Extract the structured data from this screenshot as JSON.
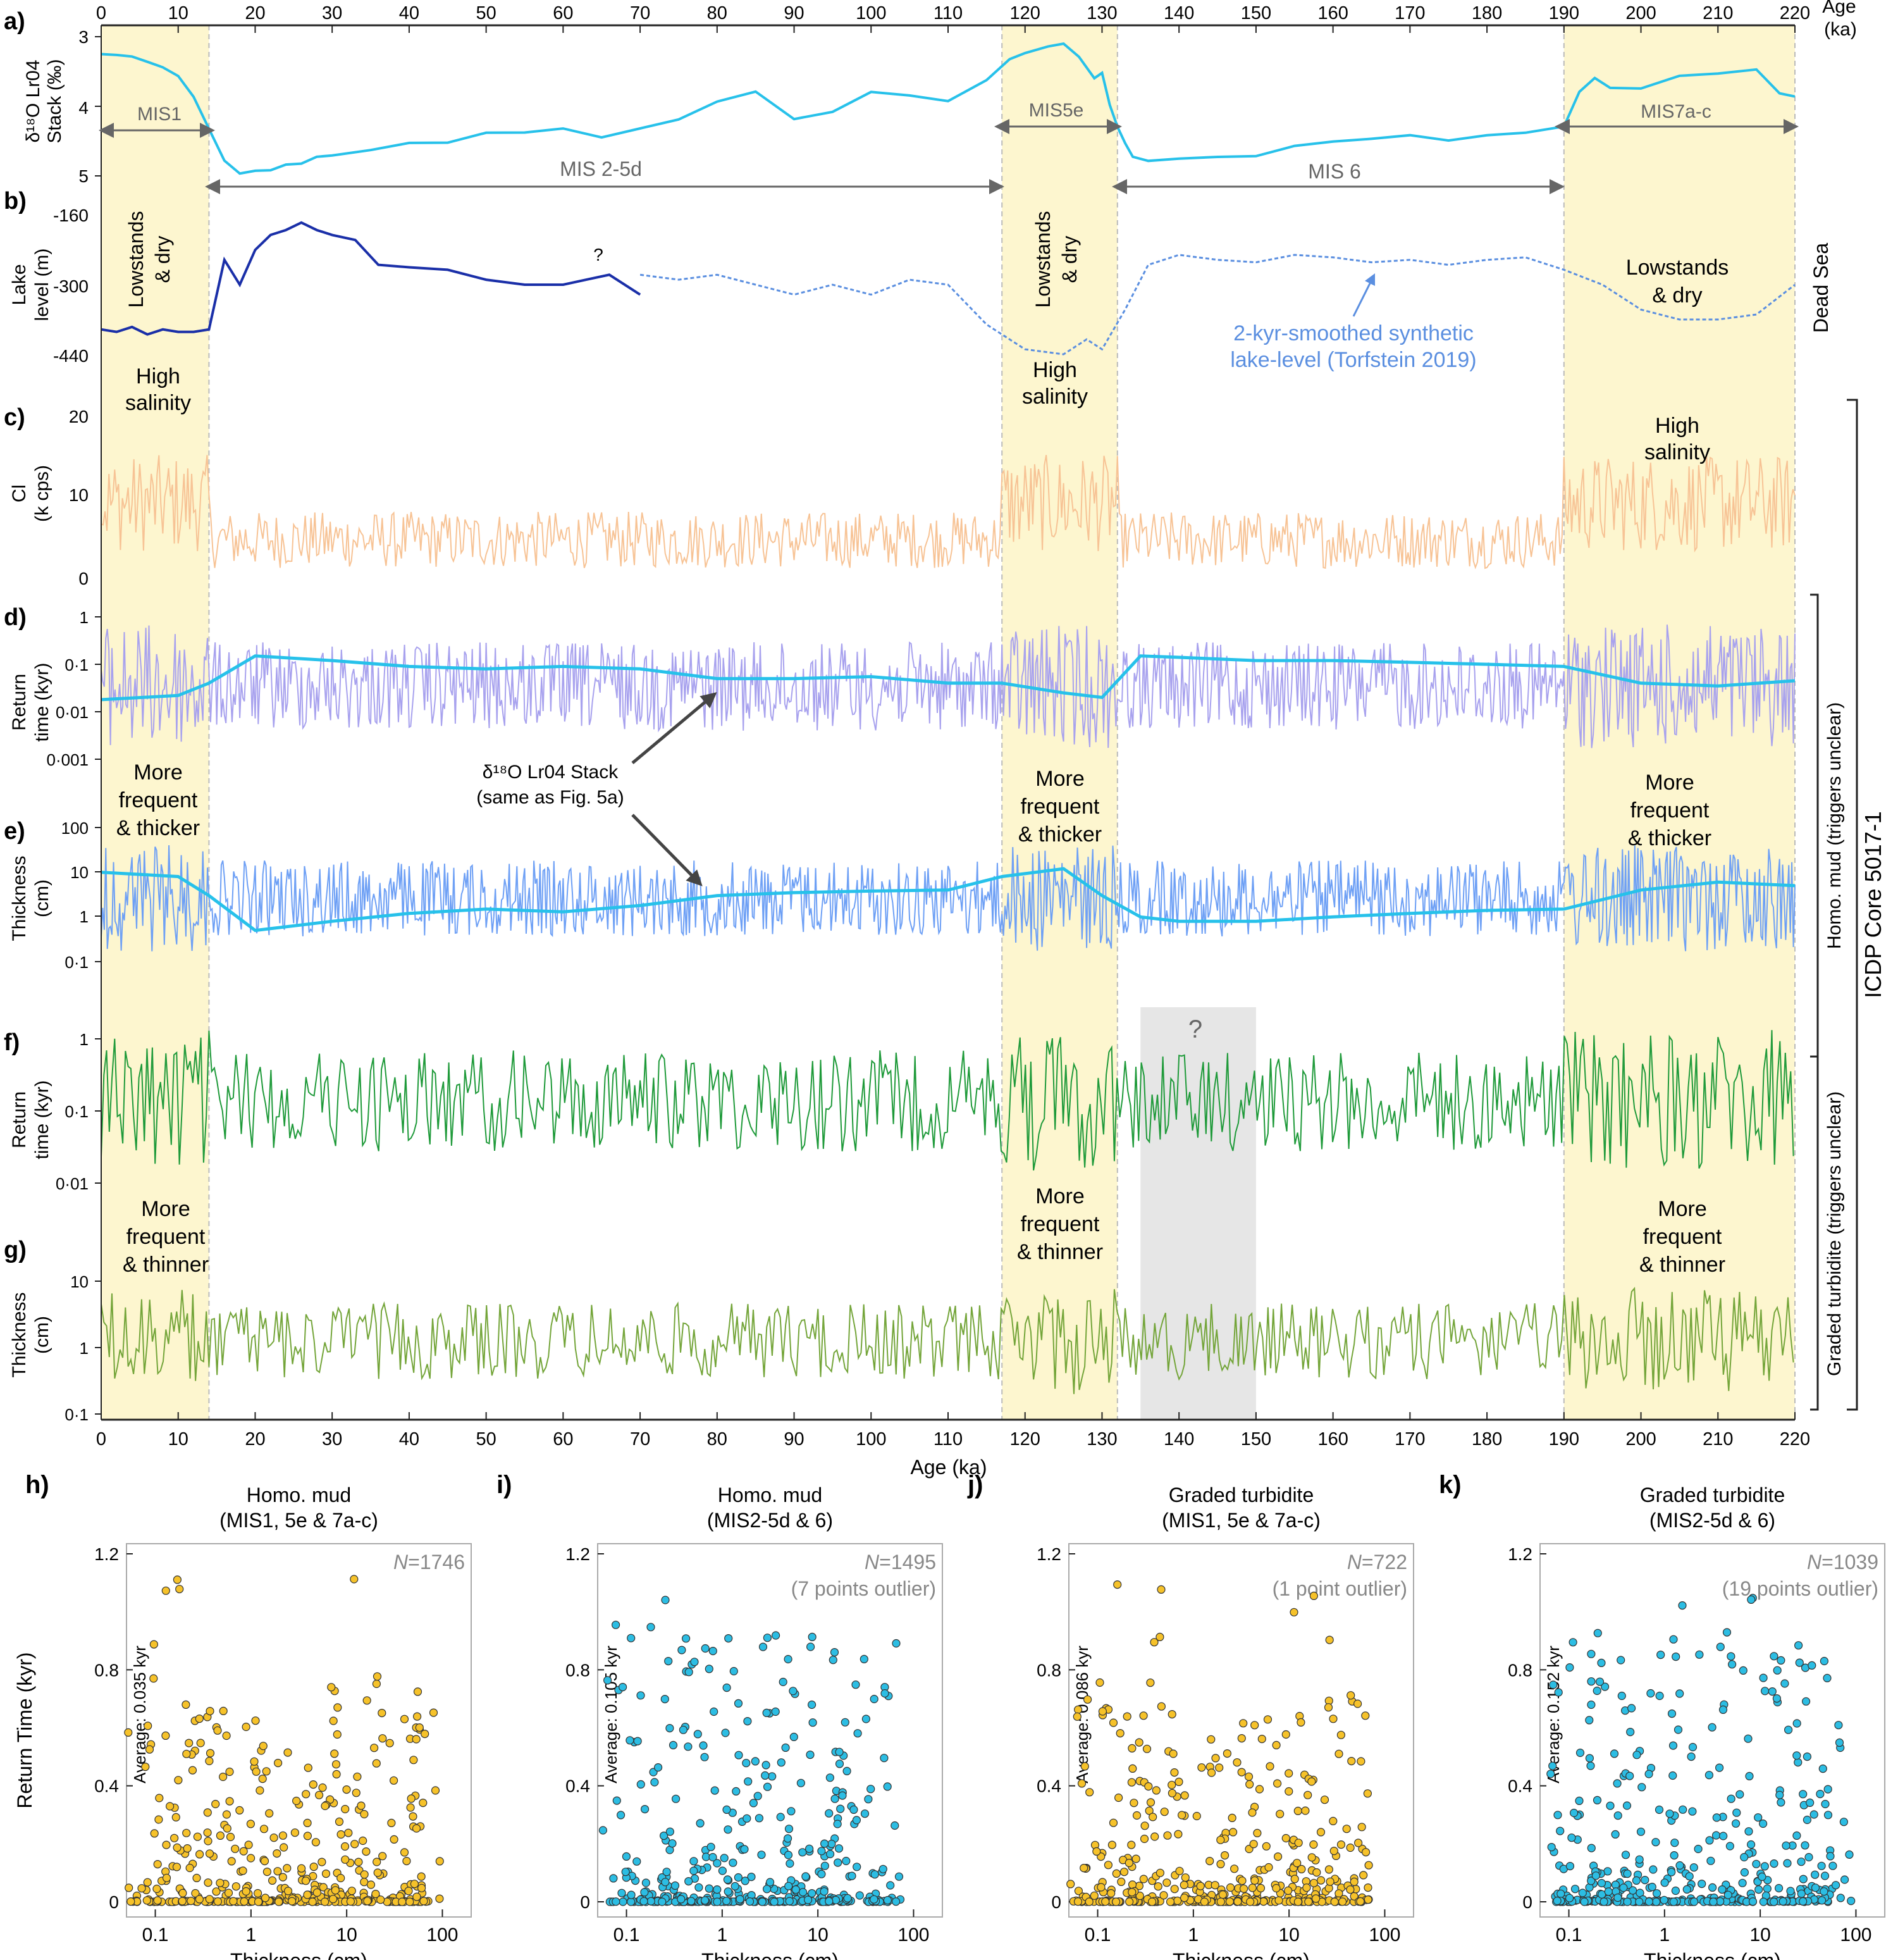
{
  "colors": {
    "mis_band": "#fdf6cf",
    "gray_band": "#e6e6e6",
    "d18o": "#27c1ea",
    "lake_measured": "#1a2fa8",
    "lake_synthetic": "#5b8fe0",
    "cl": "#f7c395",
    "mud_return": "#a8a2ee",
    "mud_thickness": "#6ea0f5",
    "turb_return": "#1f9a3a",
    "turb_thickness": "#74a53a",
    "scatter_warm": "#f6c22a",
    "scatter_cold": "#2cbde3",
    "label_gray": "#666666"
  },
  "age_axis": {
    "top_label": "Age",
    "top_unit": "(ka)",
    "bottom_label": "Age (ka)",
    "ticks": [
      "0",
      "10",
      "20",
      "30",
      "40",
      "50",
      "60",
      "70",
      "80",
      "90",
      "100",
      "110",
      "120",
      "130",
      "140",
      "150",
      "160",
      "170",
      "180",
      "190",
      "200",
      "210",
      "220"
    ]
  },
  "mis_bands_ka": [
    [
      0,
      14
    ],
    [
      117,
      132
    ],
    [
      190,
      220
    ]
  ],
  "gray_band_ka": [
    135,
    150
  ],
  "panels": {
    "a": {
      "letter": "a)",
      "ylabel1": "δ¹⁸O Lr04",
      "ylabel2": "Stack (‰)",
      "ticks": [
        "3",
        "4",
        "5"
      ],
      "mis1": "MIS1",
      "mis25d": "MIS 2-5d",
      "mis5e": "MIS5e",
      "mis6": "MIS 6",
      "mis7ac": "MIS7a-c"
    },
    "b": {
      "letter": "b)",
      "ylabel1": "Lake",
      "ylabel2": "level (m)",
      "ticks": [
        "-160",
        "-300",
        "-440"
      ],
      "lowstands_1": "Lowstands",
      "lowstands_2": "& dry",
      "question": "?",
      "synthetic_1": "2-kyr-smoothed synthetic",
      "synthetic_2": "lake-level (Torfstein 2019)",
      "high_1": "High",
      "high_2": "salinity",
      "dead_sea": "Dead Sea"
    },
    "c": {
      "letter": "c)",
      "ylabel1": "Cl",
      "ylabel2": "(k cps)",
      "ticks": [
        "20",
        "10",
        "0"
      ],
      "high_1": "High",
      "high_2": "salinity"
    },
    "d": {
      "letter": "d)",
      "ylabel1": "Return",
      "ylabel2": "time (kyr)",
      "ticks": [
        "1",
        "0·1",
        "0·01",
        "0·001"
      ],
      "more_1": "More",
      "more_2": "frequent",
      "more_3": "& thicker",
      "stack_1": "δ¹⁸O Lr04 Stack",
      "stack_2": "(same as Fig. 5a)"
    },
    "e": {
      "letter": "e)",
      "ylabel1": "Thickness",
      "ylabel2": "(cm)",
      "ticks": [
        "100",
        "10",
        "1",
        "0·1"
      ]
    },
    "f": {
      "letter": "f)",
      "ylabel1": "Return",
      "ylabel2": "time (kyr)",
      "ticks": [
        "1",
        "0·1",
        "0·01"
      ],
      "question": "?",
      "more_1": "More",
      "more_2": "frequent",
      "more_3": "& thinner"
    },
    "g": {
      "letter": "g)",
      "ylabel1": "Thickness",
      "ylabel2": "(cm)",
      "ticks": [
        "10",
        "1",
        "0·1"
      ]
    }
  },
  "side_labels": {
    "homo_mud": "Homo. mud (triggers unclear)",
    "graded_turbidite": "Graded turbidite (triggers unclear)",
    "core": "ICDP Core 5017-1"
  },
  "scatter_panels": [
    {
      "letter": "h)",
      "title1": "Homo. mud",
      "title2": "(MIS1, 5e & 7a-c)",
      "n_label": "N",
      "n_value": "=1746",
      "outlier": "",
      "average": "Average: 0.035 kyr",
      "color_key": "scatter_warm"
    },
    {
      "letter": "i)",
      "title1": "Homo. mud",
      "title2": "(MIS2-5d & 6)",
      "n_label": "N",
      "n_value": "=1495",
      "outlier": "(7 points outlier)",
      "average": "Average: 0.105 kyr",
      "color_key": "scatter_cold"
    },
    {
      "letter": "j)",
      "title1": "Graded turbidite",
      "title2": "(MIS1, 5e & 7a-c)",
      "n_label": "N",
      "n_value": "=722",
      "outlier": "(1 point outlier)",
      "average": "Average: 0.086 kyr",
      "color_key": "scatter_warm"
    },
    {
      "letter": "k)",
      "title1": "Graded turbidite",
      "title2": "(MIS2-5d & 6)",
      "n_label": "N",
      "n_value": "=1039",
      "outlier": "(19 points outlier)",
      "average": "Average: 0.152 kyr",
      "color_key": "scatter_cold"
    }
  ],
  "scatter_axes": {
    "ylabel": "Return Time (kyr)",
    "xlabel": "Thickness (cm)",
    "yticks": [
      "0",
      "0.4",
      "0.8",
      "1.2"
    ],
    "xticks": [
      "0.1",
      "1",
      "10",
      "100"
    ]
  },
  "chart_data": [
    {
      "type": "line",
      "panel": "a",
      "title": "δ¹⁸O Lr04 Stack (‰)",
      "xlabel": "Age (ka)",
      "ylabel": "δ¹⁸O Lr04 Stack (‰)",
      "xlim": [
        0,
        220
      ],
      "ylim": [
        5,
        3
      ],
      "y_inverted": true,
      "x": [
        0,
        2,
        4,
        6,
        8,
        10,
        12,
        14,
        16,
        18,
        20,
        22,
        24,
        26,
        28,
        30,
        35,
        40,
        45,
        50,
        55,
        60,
        65,
        70,
        75,
        80,
        85,
        90,
        95,
        100,
        105,
        110,
        115,
        118,
        120,
        123,
        125,
        127,
        129,
        130,
        131,
        132,
        133,
        134,
        136,
        140,
        145,
        150,
        155,
        160,
        165,
        170,
        175,
        180,
        185,
        190,
        192,
        194,
        196,
        200,
        205,
        210,
        215,
        218,
        220
      ],
      "y": [
        3.25,
        3.25,
        3.3,
        3.35,
        3.4,
        3.55,
        3.85,
        4.35,
        4.75,
        4.95,
        4.9,
        4.9,
        4.85,
        4.8,
        4.75,
        4.7,
        4.65,
        4.55,
        4.5,
        4.35,
        4.35,
        4.35,
        4.45,
        4.3,
        4.2,
        3.95,
        3.8,
        4.15,
        4.05,
        3.8,
        3.85,
        3.9,
        3.65,
        3.35,
        3.25,
        3.15,
        3.1,
        3.25,
        3.6,
        3.5,
        4.0,
        4.3,
        4.5,
        4.7,
        4.8,
        4.75,
        4.7,
        4.7,
        4.6,
        4.5,
        4.5,
        4.4,
        4.5,
        4.4,
        4.4,
        4.3,
        3.8,
        3.6,
        3.7,
        3.75,
        3.6,
        3.55,
        3.5,
        3.8,
        3.9
      ]
    },
    {
      "type": "line",
      "panel": "b",
      "series": [
        {
          "name": "Dead Sea",
          "x": [
            0,
            2,
            4,
            6,
            8,
            10,
            12,
            14,
            16,
            18,
            20,
            22,
            24,
            26,
            28,
            30,
            33,
            36,
            40,
            45,
            50,
            55,
            60,
            63,
            66,
            70
          ],
          "y": [
            -390,
            -395,
            -385,
            -400,
            -390,
            -395,
            -395,
            -390,
            -250,
            -300,
            -230,
            -200,
            -190,
            -175,
            -190,
            -200,
            -210,
            -260,
            -265,
            -270,
            -290,
            -300,
            -300,
            -290,
            -280,
            -320
          ]
        },
        {
          "name": "2-kyr-smoothed synthetic lake-level (Torfstein 2019)",
          "x": [
            70,
            75,
            80,
            85,
            90,
            95,
            100,
            105,
            110,
            115,
            120,
            125,
            128,
            130,
            133,
            136,
            140,
            145,
            150,
            155,
            160,
            165,
            170,
            175,
            180,
            185,
            190,
            195,
            200,
            205,
            210,
            215,
            220
          ],
          "y": [
            -280,
            -290,
            -280,
            -300,
            -320,
            -300,
            -320,
            -290,
            -300,
            -380,
            -430,
            -440,
            -410,
            -430,
            -350,
            -260,
            -240,
            -250,
            -255,
            -240,
            -245,
            -255,
            -250,
            -260,
            -250,
            -245,
            -270,
            -300,
            -350,
            -370,
            -370,
            -360,
            -300
          ]
        }
      ],
      "xlim": [
        0,
        220
      ],
      "ylim": [
        -440,
        -160
      ]
    },
    {
      "type": "line",
      "panel": "c",
      "xlabel": "Age (ka)",
      "ylabel": "Cl (k cps)",
      "xlim": [
        0,
        220
      ],
      "ylim": [
        0,
        20
      ]
    },
    {
      "type": "line",
      "panel": "d",
      "ylabel": "Return time (kyr)",
      "xlim": [
        0,
        220
      ],
      "ylim": [
        0.001,
        1
      ],
      "yscale": "log",
      "series": [
        {
          "name": "δ¹⁸O Lr04 Stack",
          "x": [
            0,
            10,
            14,
            20,
            30,
            40,
            50,
            60,
            70,
            80,
            90,
            100,
            110,
            117,
            125,
            130,
            135,
            140,
            150,
            160,
            170,
            180,
            190,
            200,
            210,
            220
          ],
          "y": [
            0.018,
            0.022,
            0.04,
            0.15,
            0.12,
            0.09,
            0.08,
            0.09,
            0.08,
            0.05,
            0.05,
            0.055,
            0.04,
            0.04,
            0.025,
            0.02,
            0.15,
            0.14,
            0.12,
            0.12,
            0.11,
            0.1,
            0.09,
            0.04,
            0.035,
            0.045
          ]
        }
      ]
    },
    {
      "type": "line",
      "panel": "e",
      "ylabel": "Thickness (cm)",
      "xlim": [
        0,
        220
      ],
      "ylim": [
        0.1,
        100
      ],
      "yscale": "log",
      "series": [
        {
          "name": "δ¹⁸O Lr04 Stack",
          "x": [
            0,
            10,
            14,
            20,
            30,
            40,
            50,
            60,
            70,
            80,
            90,
            100,
            110,
            117,
            125,
            130,
            135,
            140,
            150,
            160,
            170,
            180,
            190,
            200,
            210,
            220
          ],
          "y": [
            10,
            8,
            3,
            0.5,
            0.8,
            1.2,
            1.5,
            1.3,
            1.8,
            3,
            3.5,
            3.8,
            4,
            8,
            12,
            3,
            1,
            0.8,
            0.8,
            1,
            1.2,
            1.4,
            1.5,
            4,
            6,
            5
          ]
        }
      ]
    },
    {
      "type": "line",
      "panel": "f",
      "ylabel": "Return time (kyr)",
      "xlim": [
        0,
        220
      ],
      "ylim": [
        0.003,
        1.5
      ],
      "yscale": "log"
    },
    {
      "type": "line",
      "panel": "g",
      "ylabel": "Thickness (cm)",
      "xlim": [
        0,
        220
      ],
      "ylim": [
        0.1,
        40
      ],
      "yscale": "log"
    },
    {
      "type": "scatter",
      "panel": "h",
      "title": "Homo. mud (MIS1, 5e & 7a-c)",
      "xlabel": "Thickness (cm)",
      "ylabel": "Return Time (kyr)",
      "xscale": "log",
      "xlim": [
        0.05,
        200
      ],
      "ylim": [
        0,
        1.2
      ],
      "n": 1746,
      "average": 0.035
    },
    {
      "type": "scatter",
      "panel": "i",
      "title": "Homo. mud (MIS2-5d & 6)",
      "xlabel": "Thickness (cm)",
      "ylabel": "Return Time (kyr)",
      "xscale": "log",
      "xlim": [
        0.05,
        300
      ],
      "ylim": [
        0,
        1.2
      ],
      "n": 1495,
      "average": 0.105
    },
    {
      "type": "scatter",
      "panel": "j",
      "title": "Graded turbidite (MIS1, 5e & 7a-c)",
      "xlabel": "Thickness (cm)",
      "ylabel": "Return Time (kyr)",
      "xscale": "log",
      "xlim": [
        0.05,
        200
      ],
      "ylim": [
        0,
        1.2
      ],
      "n": 722,
      "average": 0.086
    },
    {
      "type": "scatter",
      "panel": "k",
      "title": "Graded turbidite (MIS2-5d & 6)",
      "xlabel": "Thickness (cm)",
      "ylabel": "Return Time (kyr)",
      "xscale": "log",
      "xlim": [
        0.05,
        200
      ],
      "ylim": [
        0,
        1.2
      ],
      "n": 1039,
      "average": 0.152
    }
  ]
}
